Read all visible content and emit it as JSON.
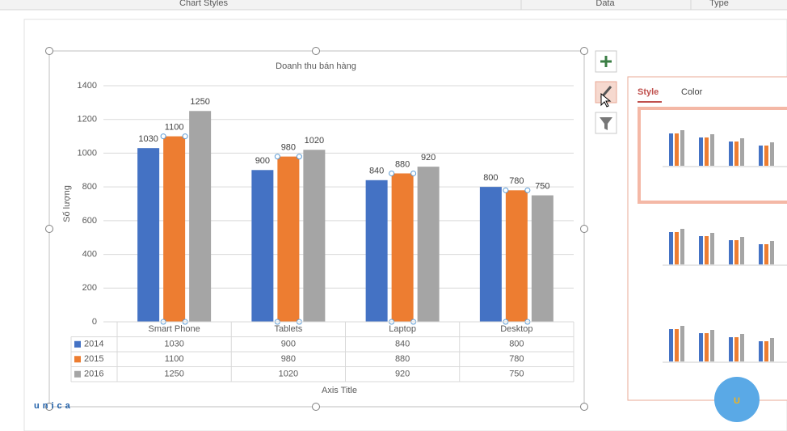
{
  "ribbon": {
    "groups": [
      "Chart Styles",
      "Data",
      "Type"
    ]
  },
  "panel": {
    "tabs": [
      "Style",
      "Color"
    ]
  },
  "brand": {
    "logo": "unica",
    "badge": "U"
  },
  "chart_data": {
    "type": "bar",
    "title": "Doanh thu bán hàng",
    "y_label": "Số lượng",
    "x_label": "Axis Title",
    "categories": [
      "Smart Phone",
      "Tablets",
      "Laptop",
      "Desktop"
    ],
    "series": [
      {
        "name": "2014",
        "color": "#4472c4",
        "values": [
          1030,
          900,
          840,
          800
        ]
      },
      {
        "name": "2015",
        "color": "#ed7d31",
        "values": [
          1100,
          980,
          880,
          780
        ]
      },
      {
        "name": "2016",
        "color": "#a5a5a5",
        "values": [
          1250,
          1020,
          920,
          750
        ]
      }
    ],
    "ylim": [
      0,
      1400
    ],
    "yticks": [
      0,
      200,
      400,
      600,
      800,
      1000,
      1200,
      1400
    ],
    "grid": true,
    "data_table": true
  }
}
